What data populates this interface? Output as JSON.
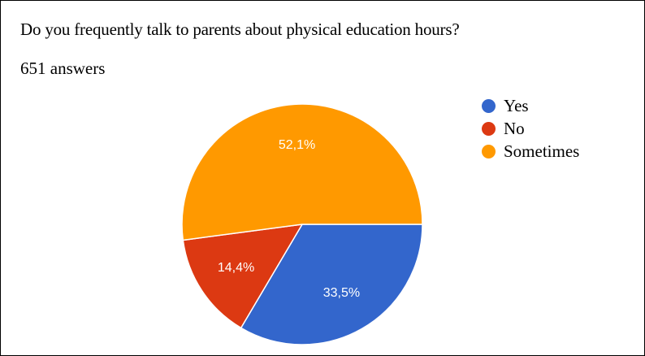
{
  "title": "Do you frequently talk to parents about physical education hours?",
  "answers_count": "651 answers",
  "chart_data": {
    "type": "pie",
    "slices": [
      {
        "name": "Yes",
        "value": 33.5,
        "label": "33,5%",
        "color": "#3366cc"
      },
      {
        "name": "No",
        "value": 14.4,
        "label": "14,4%",
        "color": "#dc3912"
      },
      {
        "name": "Sometimes",
        "value": 52.1,
        "label": "52,1%",
        "color": "#ff9900"
      }
    ],
    "legend_position": "top-right"
  }
}
